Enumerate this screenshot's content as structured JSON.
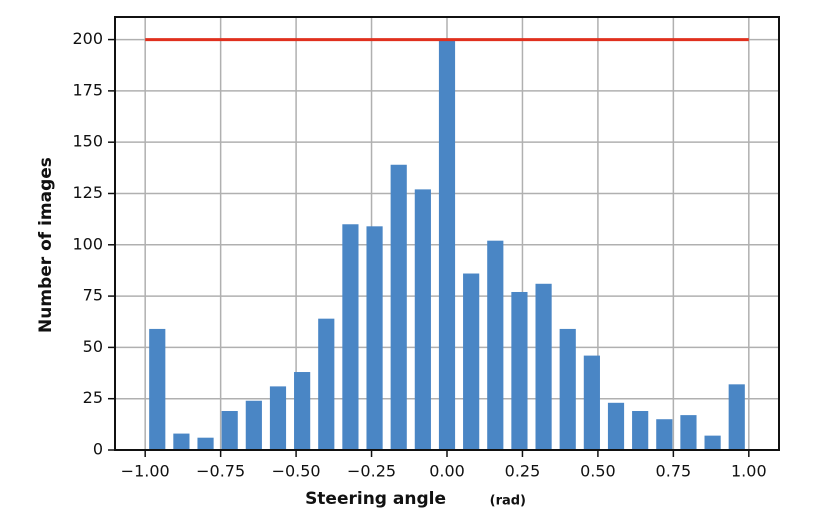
{
  "chart_data": {
    "type": "histogram",
    "xlabel": "Steering angle",
    "xlabel_unit": "(rad)",
    "ylabel": "Number of images",
    "bins": [
      -1.0,
      -0.92,
      -0.84,
      -0.76,
      -0.68,
      -0.6,
      -0.52,
      -0.44,
      -0.36,
      -0.28,
      -0.2,
      -0.12,
      -0.04,
      0.04,
      0.12,
      0.2,
      0.28,
      0.36,
      0.44,
      0.52,
      0.6,
      0.68,
      0.76,
      0.84,
      0.92,
      1.0
    ],
    "counts": [
      59,
      8,
      6,
      19,
      24,
      31,
      38,
      64,
      110,
      109,
      139,
      127,
      200,
      86,
      102,
      77,
      81,
      59,
      46,
      23,
      19,
      15,
      17,
      7,
      32
    ],
    "color": "#4a86c5",
    "reference_line": {
      "y": 200,
      "x": [
        -1.0,
        1.0
      ],
      "color": "#e0301e"
    },
    "xlim": [
      -1.1,
      1.1
    ],
    "xticks": [
      {
        "value": -1.0,
        "label": "−1.00"
      },
      {
        "value": -0.75,
        "label": "−0.75"
      },
      {
        "value": -0.5,
        "label": "−0.50"
      },
      {
        "value": -0.25,
        "label": "−0.25"
      },
      {
        "value": 0,
        "label": "0.00"
      },
      {
        "value": 0.25,
        "label": "0.25"
      },
      {
        "value": 0.5,
        "label": "0.50"
      },
      {
        "value": 0.75,
        "label": "0.75"
      },
      {
        "value": 1.0,
        "label": "1.00"
      }
    ],
    "ylim": [
      0,
      211
    ],
    "yticks": [
      0,
      25,
      50,
      75,
      100,
      125,
      150,
      175,
      200
    ],
    "grid": true
  }
}
